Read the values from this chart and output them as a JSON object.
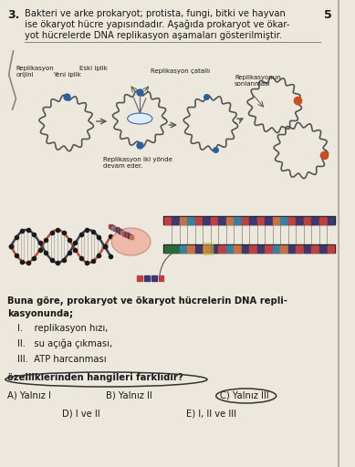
{
  "question_number": "3.",
  "page_number": "5",
  "title_line1": "Bakteri ve arke prokaryot; protista, fungi, bitki ve hayvan",
  "title_line2": "ise ökaryot hücre yapısındadır. Aşağıda prokaryot ve ökar-",
  "title_line3": "yot hücrelerde DNA replikasyon aşamaları gösterilmiştir.",
  "label_replik_orijin": "Replikasyon\norijini",
  "label_eski_iplik": "Eski iplik",
  "label_yeni_iplik": "Yeni iplik",
  "label_replik_catallari": "Replikasyon çatallı",
  "label_replikasyonun_sonlanmasi": "Replikasyonun\nsonlanması",
  "label_replik_iki_yonde": "Replikasyon iki yönde\ndevam eder.",
  "question_bold": "Buna göre, prokaryot ve ökaryot hücrelerin DNA repli-\nkasyonunda;",
  "items": [
    "I.    replikasyon hızı,",
    "II.   su açığa çıkması,",
    "III.  ATP harcanması"
  ],
  "question_end": "özelliklerinden hangileri farklıdır?",
  "answers": [
    "A) Yalnız I",
    "B) Yalnız II",
    "C) Yalnız III",
    "D) I ve II",
    "E) I, II ve III"
  ],
  "bg_color": "#ede8de",
  "text_color": "#1a1a1a",
  "wavy_color": "#555555",
  "arrow_color": "#555555",
  "dot_blue": "#2a5fa0",
  "dot_orange": "#c85020",
  "bubble_color": "#f0b8a8",
  "helix_color1": "#c05030",
  "helix_color2": "#404050",
  "bar_top_colors": [
    "#c04040",
    "#3a3a70",
    "#c87040",
    "#3880a0",
    "#c04040",
    "#3a3a70",
    "#c04040",
    "#3a3a70",
    "#c87040",
    "#3880a0",
    "#c04040",
    "#3a3a70",
    "#c04040",
    "#3a3a70",
    "#c87040",
    "#3880a0",
    "#c04040",
    "#3a3a70",
    "#c04040",
    "#3a3a70"
  ],
  "bar_bot_colors": [
    "#3a3a70",
    "#c04040",
    "#3880a0",
    "#c87040",
    "#3a3a70",
    "#c04040",
    "#3a3a70",
    "#c04040",
    "#3880a0",
    "#c87040",
    "#3a3a70",
    "#c04040",
    "#3a3a70",
    "#c04040",
    "#3880a0",
    "#c87040",
    "#3a3a70",
    "#c04040",
    "#3a3a70",
    "#c04040"
  ],
  "strand_dark": "#1a1a1a",
  "green_bar": "#2a6a3a",
  "yellow_highlight": "#c8c840"
}
